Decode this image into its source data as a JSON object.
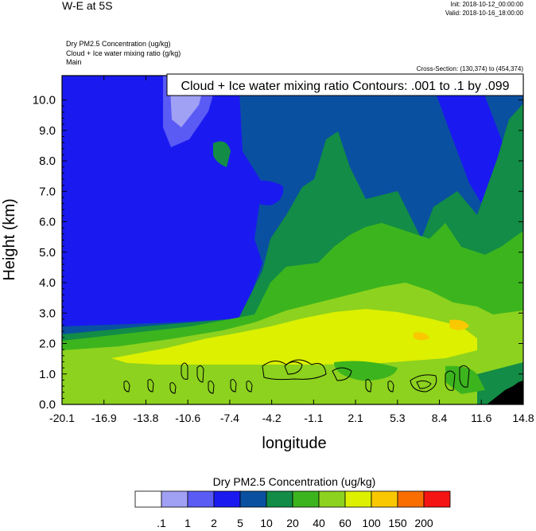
{
  "header": {
    "main_title": "W-E at 5S",
    "init": "Init: 2018-10-12_00:00:00",
    "valid": "Valid: 2018-10-16_18:00:00",
    "field1": "Dry PM2.5 Concentration    (ug/kg)",
    "field2": "Cloud + Ice water mixing ratio    (g/kg)",
    "field3": "Main",
    "cross_section": "Cross-Section: (130,374) to (454,374)"
  },
  "chart_data": {
    "type": "heatmap",
    "title": "W-E at 5S",
    "xlabel": "longitude",
    "ylabel": "Height (km)",
    "xlim": [
      -20.1,
      14.8
    ],
    "ylim": [
      0.0,
      10.8
    ],
    "x_ticks": [
      "-20.1",
      "-16.9",
      "-13.8",
      "-10.6",
      "-7.4",
      "-4.2",
      "-1.1",
      "2.1",
      "5.3",
      "8.4",
      "11.6",
      "14.8"
    ],
    "y_ticks": [
      "0.0",
      "1.0",
      "2.0",
      "3.0",
      "4.0",
      "5.0",
      "6.0",
      "7.0",
      "8.0",
      "9.0",
      "10.0"
    ],
    "y_tick_values": [
      0,
      1,
      2,
      3,
      4,
      5,
      6,
      7,
      8,
      9,
      10
    ],
    "contour_label": "Cloud + Ice water mixing ratio Contours: .001 to .1 by .099",
    "colorbar": {
      "title": "Dry PM2.5 Concentration  (ug/kg)",
      "labels": [
        ".1",
        "1",
        "2",
        "5",
        "10",
        "20",
        "40",
        "60",
        "100",
        "150",
        "200"
      ],
      "colors": [
        "#ffffff",
        "#a0a0f5",
        "#5a5af5",
        "#1a1af0",
        "#0a50a0",
        "#128c46",
        "#3cb41e",
        "#8cd21e",
        "#dcf000",
        "#fac800",
        "#fa6e00",
        "#f51414"
      ]
    },
    "regions_approx": [
      {
        "level": "5-10",
        "desc": "upper troposphere background"
      },
      {
        "level": "2-5",
        "desc": "upper-left plume and mid-level pockets"
      },
      {
        "level": "1-2",
        "desc": "top-left high-altitude patch"
      },
      {
        "level": "10-20",
        "desc": "central mid-level plume"
      },
      {
        "level": "20-40",
        "desc": "lower troposphere"
      },
      {
        "level": "40-60",
        "desc": "boundary layer"
      },
      {
        "level": "60-100",
        "desc": "near 2 km aerosol layer"
      },
      {
        "level": "100-150",
        "desc": "core of aerosol layer"
      }
    ]
  }
}
